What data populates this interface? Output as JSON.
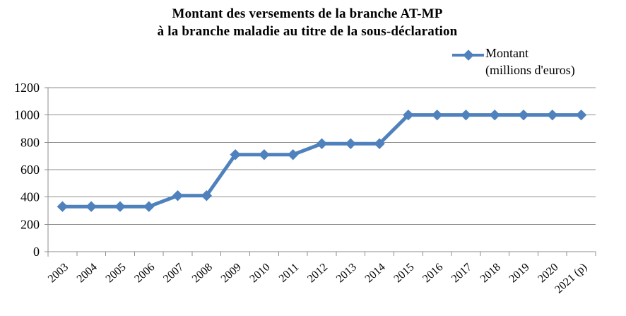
{
  "title": {
    "line1": "Montant des versements de la branche AT-MP",
    "line2": "à la branche maladie au titre de la sous-déclaration"
  },
  "legend": {
    "line1": "Montant",
    "line2": "(millions d'euros)"
  },
  "colors": {
    "series": "#4f81bd",
    "gridline": "#8e8e8e",
    "axis": "#8e8e8e",
    "text": "#000000",
    "background": "#ffffff"
  },
  "chart_data": {
    "type": "line",
    "title": "Montant des versements de la branche AT-MP à la branche maladie au titre de la sous-déclaration",
    "categories": [
      "2003",
      "2004",
      "2005",
      "2006",
      "2007",
      "2008",
      "2009",
      "2010",
      "2011",
      "2012",
      "2013",
      "2014",
      "2015",
      "2016",
      "2017",
      "2018",
      "2019",
      "2020",
      "2021 (p)"
    ],
    "series": [
      {
        "name": "Montant (millions d'euros)",
        "values": [
          330,
          330,
          330,
          330,
          410,
          410,
          710,
          710,
          710,
          790,
          790,
          790,
          1000,
          1000,
          1000,
          1000,
          1000,
          1000,
          1000
        ]
      }
    ],
    "xlabel": "",
    "ylabel": "",
    "ylim": [
      0,
      1200
    ],
    "yticks": [
      0,
      200,
      400,
      600,
      800,
      1000,
      1200
    ],
    "grid": true,
    "legend_position": "top-right",
    "marker": "diamond"
  }
}
